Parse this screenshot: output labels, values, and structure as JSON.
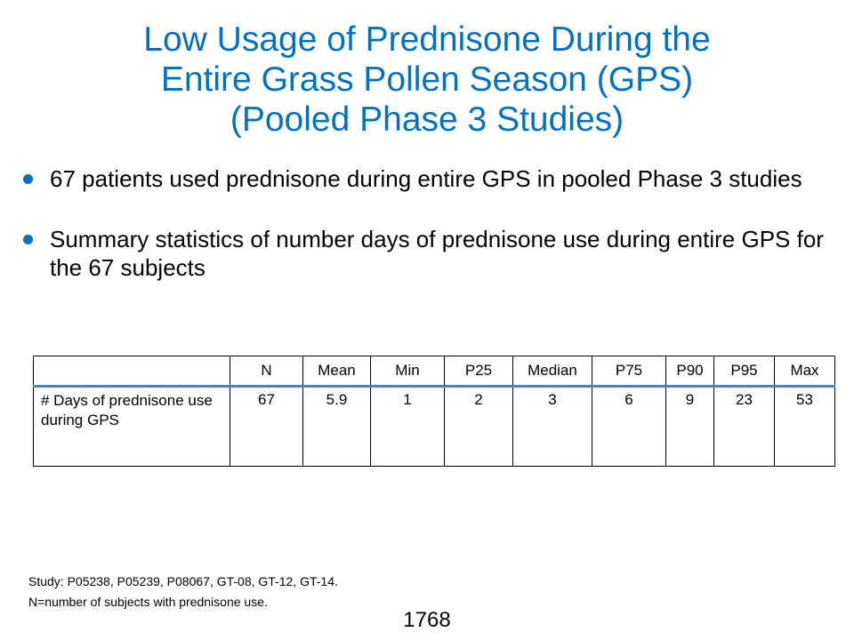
{
  "title": {
    "line1": "Low Usage of Prednisone During the",
    "line2": "Entire Grass Pollen Season (GPS)",
    "line3": "(Pooled Phase 3 Studies)"
  },
  "bullets": [
    "67 patients used prednisone during entire GPS in pooled Phase 3 studies",
    "Summary statistics of number days of prednisone use during entire GPS for the 67 subjects"
  ],
  "table": {
    "headers": [
      "",
      "N",
      "Mean",
      "Min",
      "P25",
      "Median",
      "P75",
      "P90",
      "P95",
      "Max"
    ],
    "row": {
      "label": "# Days of prednisone use during GPS",
      "values": [
        "67",
        "5.9",
        "1",
        "2",
        "3",
        "6",
        "9",
        "23",
        "53"
      ]
    }
  },
  "footnotes": [
    "Study: P05238, P05239, P08067, GT-08, GT-12, GT-14.",
    "N=number of subjects with prednisone use."
  ],
  "page_number": "1768",
  "colors": {
    "title": "#0070c0",
    "bullet": "#0070c0",
    "header_rule": "#4f81bd"
  }
}
